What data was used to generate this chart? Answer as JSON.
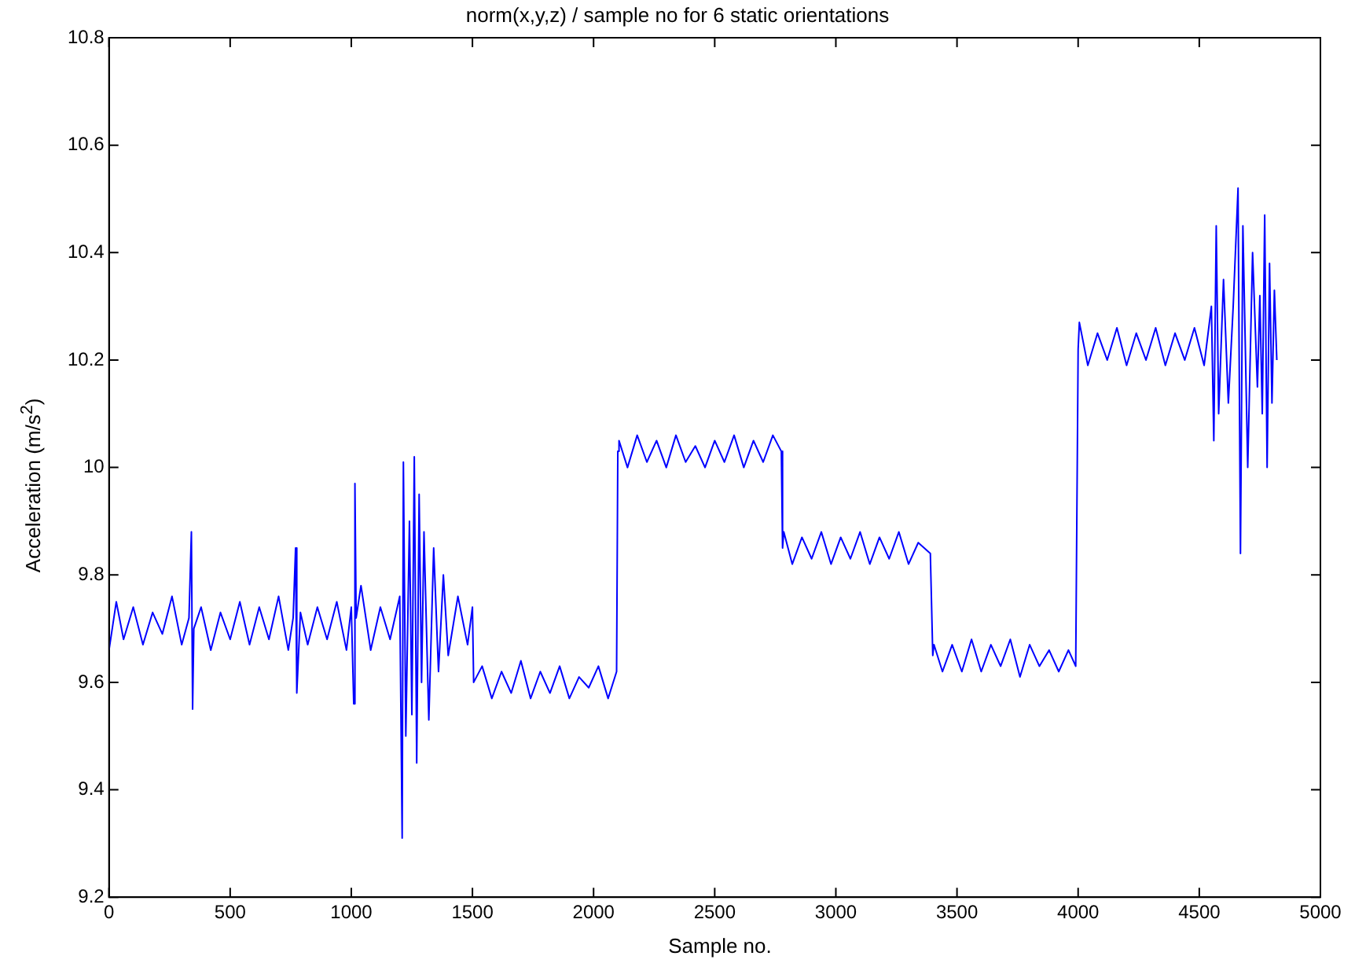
{
  "chart_data": {
    "type": "line",
    "title": "norm(x,y,z) / sample no for 6 static orientations",
    "xlabel": "Sample no.",
    "ylabel": "Acceleration (m/s$^{2}$)",
    "xlim": [
      0,
      5000
    ],
    "xticks": [
      0,
      500,
      1000,
      1500,
      2000,
      2500,
      3000,
      3500,
      4000,
      4500,
      5000
    ],
    "ylim": [
      9.2,
      10.8
    ],
    "yticks": [
      9.2,
      9.4,
      9.6,
      9.8,
      10,
      10.2,
      10.4,
      10.6,
      10.8
    ],
    "grid": false,
    "legend": false,
    "marker": "none",
    "line_style": "solid",
    "series": [
      {
        "color": "#0000ff",
        "x": [
          0,
          30,
          60,
          100,
          140,
          180,
          220,
          260,
          300,
          330,
          340,
          345,
          350,
          380,
          420,
          460,
          500,
          540,
          580,
          620,
          660,
          700,
          740,
          760,
          770,
          775,
          790,
          820,
          860,
          900,
          940,
          980,
          1000,
          1010,
          1015,
          1020,
          1040,
          1080,
          1120,
          1160,
          1200,
          1210,
          1215,
          1225,
          1240,
          1250,
          1260,
          1270,
          1280,
          1290,
          1300,
          1320,
          1340,
          1360,
          1380,
          1400,
          1440,
          1480,
          1500,
          1505,
          1540,
          1580,
          1620,
          1660,
          1700,
          1740,
          1780,
          1820,
          1860,
          1900,
          1940,
          1980,
          2020,
          2060,
          2095,
          2100,
          2105,
          2140,
          2180,
          2220,
          2260,
          2300,
          2340,
          2380,
          2420,
          2460,
          2500,
          2540,
          2580,
          2620,
          2660,
          2700,
          2740,
          2775,
          2780,
          2785,
          2820,
          2860,
          2900,
          2940,
          2980,
          3020,
          3060,
          3100,
          3140,
          3180,
          3220,
          3260,
          3300,
          3340,
          3390,
          3400,
          3405,
          3440,
          3480,
          3520,
          3560,
          3600,
          3640,
          3680,
          3720,
          3760,
          3800,
          3840,
          3880,
          3920,
          3960,
          3990,
          4000,
          4005,
          4040,
          4080,
          4120,
          4160,
          4200,
          4240,
          4280,
          4320,
          4360,
          4400,
          4440,
          4480,
          4520,
          4550,
          4560,
          4570,
          4580,
          4600,
          4620,
          4640,
          4660,
          4670,
          4680,
          4700,
          4720,
          4740,
          4750,
          4760,
          4770,
          4780,
          4790,
          4800,
          4810,
          4820
        ],
        "values": [
          9.66,
          9.75,
          9.68,
          9.74,
          9.67,
          9.73,
          9.69,
          9.76,
          9.67,
          9.72,
          9.88,
          9.55,
          9.7,
          9.74,
          9.66,
          9.73,
          9.68,
          9.75,
          9.67,
          9.74,
          9.68,
          9.76,
          9.66,
          9.72,
          9.85,
          9.58,
          9.73,
          9.67,
          9.74,
          9.68,
          9.75,
          9.66,
          9.74,
          9.56,
          9.97,
          9.72,
          9.78,
          9.66,
          9.74,
          9.68,
          9.76,
          9.31,
          10.01,
          9.5,
          9.9,
          9.54,
          10.02,
          9.45,
          9.95,
          9.6,
          9.88,
          9.53,
          9.85,
          9.62,
          9.8,
          9.65,
          9.76,
          9.67,
          9.74,
          9.6,
          9.63,
          9.57,
          9.62,
          9.58,
          9.64,
          9.57,
          9.62,
          9.58,
          9.63,
          9.57,
          9.61,
          9.59,
          9.63,
          9.57,
          9.62,
          10.03,
          10.05,
          10.0,
          10.06,
          10.01,
          10.05,
          10.0,
          10.06,
          10.01,
          10.04,
          10.0,
          10.05,
          10.01,
          10.06,
          10.0,
          10.05,
          10.01,
          10.06,
          10.03,
          9.85,
          9.88,
          9.82,
          9.87,
          9.83,
          9.88,
          9.82,
          9.87,
          9.83,
          9.88,
          9.82,
          9.87,
          9.83,
          9.88,
          9.82,
          9.86,
          9.84,
          9.65,
          9.67,
          9.62,
          9.67,
          9.62,
          9.68,
          9.62,
          9.67,
          9.63,
          9.68,
          9.61,
          9.67,
          9.63,
          9.66,
          9.62,
          9.66,
          9.63,
          10.22,
          10.27,
          10.19,
          10.25,
          10.2,
          10.26,
          10.19,
          10.25,
          10.2,
          10.26,
          10.19,
          10.25,
          10.2,
          10.26,
          10.19,
          10.3,
          10.05,
          10.45,
          10.1,
          10.35,
          10.12,
          10.3,
          10.52,
          9.84,
          10.45,
          10.0,
          10.4,
          10.15,
          10.32,
          10.1,
          10.47,
          10.0,
          10.38,
          10.12,
          10.33,
          10.2
        ]
      }
    ]
  }
}
